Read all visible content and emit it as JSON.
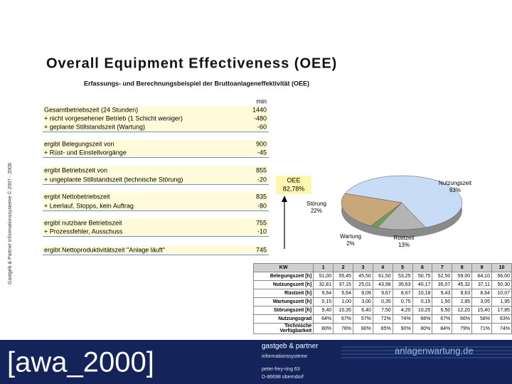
{
  "header": {
    "title": "Overall Equipment Effectiveness (OEE)",
    "side_note": "Gastgeb & Partner Informationssysteme © 2007 - 2008"
  },
  "calculation": {
    "subtitle": "Erfassungs- und Berechnungsbeispiel der Bruttoanlageneffektivität (OEE)",
    "unit": "min",
    "rows": [
      {
        "label": "Gesamtbetriebszeit (24 Stunden)",
        "value": "1440"
      },
      {
        "label": "+ nicht vorgesehener Betrieb (1 Schicht weniger)",
        "value": "-480"
      },
      {
        "label": "+ geplante Stillstandszeit (Wartung)",
        "value": "-60"
      },
      {
        "label": "ergibt Belegungszeit von",
        "value": "900"
      },
      {
        "label": "+ Rüst- und Einstellvorgänge",
        "value": "-45"
      },
      {
        "label": "ergibt Betriebszeit von",
        "value": "855"
      },
      {
        "label": "+ ungeplante Stillstandszeit (technische Störung)",
        "value": "-20"
      },
      {
        "label": "ergibt Nettobetriebszeit",
        "value": "835"
      },
      {
        "label": "+ Leerlauf, Stopps, kein Auftrag",
        "value": "-80"
      },
      {
        "label": "ergibt nutzbare Betriebszeit",
        "value": "755"
      },
      {
        "label": "+ Prozessfehler, Ausschuss",
        "value": "-10"
      },
      {
        "label": "ergibt Nettoproduktivitätszeit \"Anlage läuft\"",
        "value": "745"
      }
    ]
  },
  "oee": {
    "label": "OEE",
    "value": "82,78%"
  },
  "pie": {
    "type": "pie",
    "labels": [
      "Nutzungszeit",
      "Rüstzeit",
      "Wartung",
      "Störung"
    ],
    "values": [
      63,
      13,
      2,
      22
    ],
    "value_labels": [
      "63%",
      "13%",
      "2%",
      "22%"
    ],
    "colors": [
      "#c9dcf5",
      "#b4b4b4",
      "#6f9c5c",
      "#c8a878"
    ]
  },
  "table": {
    "header": [
      "KW",
      "1",
      "2",
      "3",
      "4",
      "5",
      "6",
      "7",
      "8",
      "9",
      "10"
    ],
    "rows": [
      [
        "Belegungszeit [h]",
        "51,00",
        "55,45",
        "45,50",
        "61,50",
        "53,25",
        "50,75",
        "52,50",
        "59,00",
        "64,10",
        "56,00"
      ],
      [
        "Nutzungszeit [h]",
        "32,81",
        "37,15",
        "25,01",
        "43,98",
        "35,63",
        "40,17",
        "35,07",
        "45,32",
        "37,11",
        "50,30"
      ],
      [
        "Rüstzeit [h]",
        "9,64",
        "5,64",
        "9,09",
        "9,67",
        "8,67",
        "10,18",
        "9,43",
        "8,63",
        "8,64",
        "10,07"
      ],
      [
        "Wartungszeit [h]",
        "0,15",
        "1,00",
        "3,00",
        "0,35",
        "0,75",
        "0,15",
        "1,50",
        "2,85",
        "3,05",
        "1,95"
      ],
      [
        "Störungszeit [h]",
        "9,40",
        "10,35",
        "6,40",
        "7,50",
        "4,20",
        "10,25",
        "6,50",
        "12,20",
        "15,40",
        "17,85"
      ],
      [
        "Nutzungsgrad",
        "64%",
        "67%",
        "57%",
        "72%",
        "74%",
        "66%",
        "67%",
        "66%",
        "58%",
        "63%"
      ],
      [
        "Technische Verfügbarkeit",
        "80%",
        "78%",
        "80%",
        "85%",
        "90%",
        "80%",
        "84%",
        "79%",
        "71%",
        "74%"
      ]
    ]
  },
  "footer": {
    "logo": "[awa_2000]",
    "company": "gastgeb & partner",
    "division": "informationssysteme",
    "street": "peter-frey-ring 63",
    "city": "D-86698 oberndorf",
    "website": "anlagenwartung.de"
  }
}
